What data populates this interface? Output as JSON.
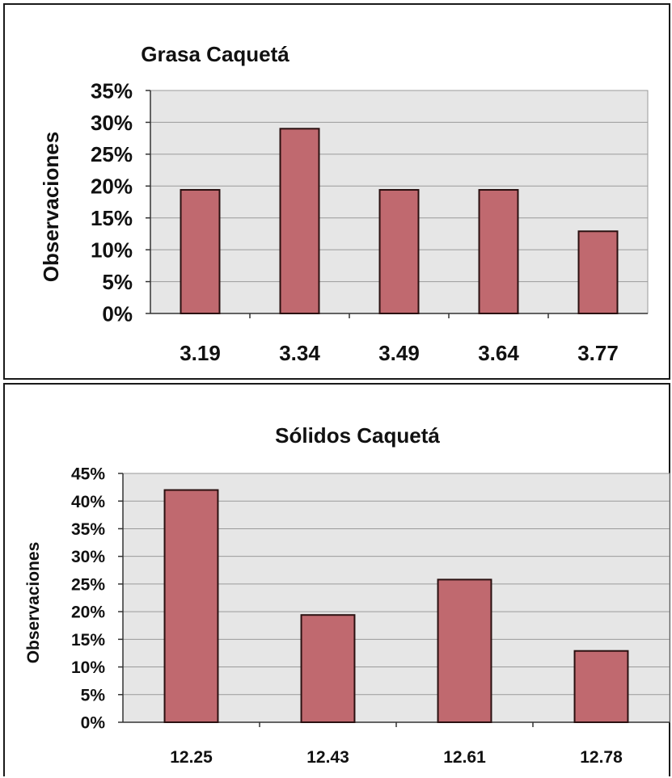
{
  "colors": {
    "bar_fill": "#c0696f",
    "plot_bg": "#e6e6e6",
    "grid": "#9a9a9a"
  },
  "chart_data": [
    {
      "type": "bar",
      "title": "Grasa Caquetá",
      "ylabel": "Observaciones",
      "xlabel": "",
      "categories": [
        "3.19",
        "3.34",
        "3.49",
        "3.64",
        "3.77"
      ],
      "values": [
        19.4,
        29.0,
        19.4,
        19.4,
        12.9
      ],
      "y_unit": "%",
      "ylim": [
        0,
        35
      ],
      "yticks": [
        "0%",
        "5%",
        "10%",
        "15%",
        "20%",
        "25%",
        "30%",
        "35%"
      ],
      "grid": true,
      "legend": "none"
    },
    {
      "type": "bar",
      "title": "Sólidos Caquetá",
      "ylabel": "Observaciones",
      "xlabel": "",
      "categories": [
        "12.25",
        "12.43",
        "12.61",
        "12.78"
      ],
      "values": [
        42.0,
        19.4,
        25.8,
        12.9
      ],
      "y_unit": "%",
      "ylim": [
        0,
        45
      ],
      "yticks": [
        "0%",
        "5%",
        "10%",
        "15%",
        "20%",
        "25%",
        "30%",
        "35%",
        "40%",
        "45%"
      ],
      "grid": true,
      "legend": "none"
    }
  ]
}
